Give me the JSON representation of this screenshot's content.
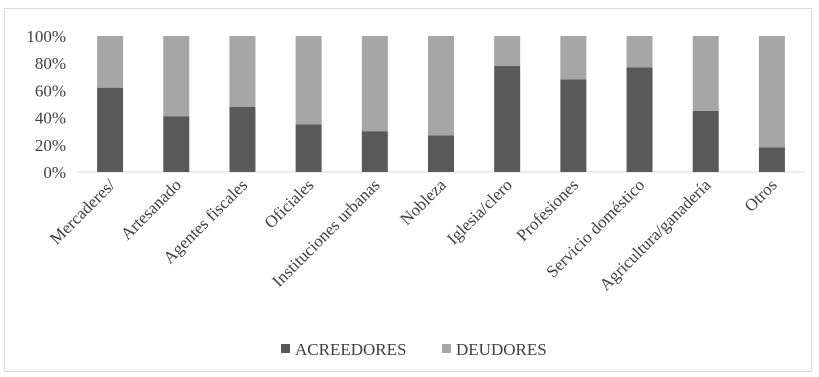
{
  "chart_data": {
    "type": "bar",
    "stacked": true,
    "percent": true,
    "categories": [
      "Mercaderes/",
      "Artesanado",
      "Agentes fiscales",
      "Oficiales",
      "Instituciones urbanas",
      "Nobleza",
      "Iglesia/clero",
      "Profesiones",
      "Servicio doméstico",
      "Agricultura/ganadería",
      "Otros"
    ],
    "series": [
      {
        "name": "ACREEDORES",
        "color": "#595959",
        "values": [
          62,
          41,
          48,
          35,
          30,
          27,
          78,
          68,
          77,
          45,
          18
        ]
      },
      {
        "name": "DEUDORES",
        "color": "#a6a6a6",
        "values": [
          38,
          59,
          52,
          65,
          70,
          73,
          22,
          32,
          23,
          55,
          82
        ]
      }
    ],
    "y_ticks": [
      "0%",
      "20%",
      "40%",
      "60%",
      "80%",
      "100%"
    ],
    "ylim": [
      0,
      100
    ],
    "grid": false,
    "legend_position": "bottom"
  }
}
